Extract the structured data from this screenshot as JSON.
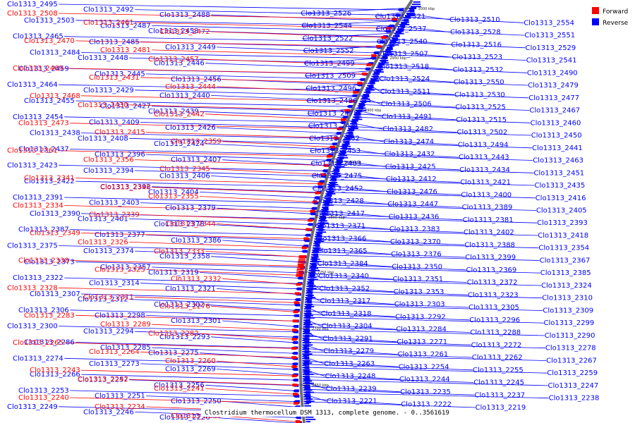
{
  "legend": {
    "forward_label": "Forward",
    "reverse_label": "Reverse",
    "forward_color": "#ff0000",
    "reverse_color": "#0000ff"
  },
  "caption": "Clostridium thermocellum DSM 1313, complete genome. - 0..3561619",
  "scale_labels": [
    "3000 kbp",
    "2950 kbp",
    "2900 kbp",
    "2850 kbp",
    "2800 kbp",
    "2750 kbp",
    "2700 kbp",
    "2650 kbp"
  ],
  "left_forward": [
    "Clo1313_2508",
    "Clo1313_2461",
    "Clo1313_2472",
    "Clo1313_2470",
    "Clo1313_2481",
    "Clo1313_2457",
    "Clo1313_2469",
    "Clo1313_2431",
    "Clo1313_2444",
    "Clo1313_2468",
    "Clo1313_2430",
    "Clo1313_2442",
    "Clo1313_2473",
    "Clo1313_2415",
    "Clo1313_2359",
    "Clo1313_2361",
    "Clo1313_2356",
    "Clo1313_2345",
    "Clo1313_2341",
    "Clo1313_2346",
    "Clo1313_2355",
    "Clo1313_2334",
    "Clo1313_2339",
    "Clo1313_2344",
    "Clo1313_2349",
    "Clo1313_2326",
    "Clo1313_2333",
    "Clo1313_2338",
    "Clo1313_2325",
    "Clo1313_2332",
    "Clo1313_2328",
    "Clo1313_2311",
    "Clo1313_2276",
    "Clo1313_2283",
    "Clo1313_2289",
    "Clo1313_2282",
    "Clo1313_2265",
    "Clo1313_2264",
    "Clo1313_2260",
    "Clo1313_2243",
    "Clo1313_2242",
    "Clo1313_2241",
    "Clo1313_2240",
    "Clo1313_2234",
    "Clo1313_2231"
  ],
  "left_reverse": [
    "Clo1313_2495",
    "Clo1313_2492",
    "Clo1313_2488",
    "Clo1313_2503",
    "Clo1313_2487",
    "Clo1313_2458",
    "Clo1313_2465",
    "Clo1313_2485",
    "Clo1313_2449",
    "Clo1313_2484",
    "Clo1313_2448",
    "Clo1313_2446",
    "Clo1313_2459",
    "Clo1313_2445",
    "Clo1313_2456",
    "Clo1313_2464",
    "Clo1313_2429",
    "Clo1313_2440",
    "Clo1313_2455",
    "Clo1313_2427",
    "Clo1313_2439",
    "Clo1313_2454",
    "Clo1313_2409",
    "Clo1313_2426",
    "Clo1313_2438",
    "Clo1313_2408",
    "Clo1313_2424",
    "Clo1313_2437",
    "Clo1313_2396",
    "Clo1313_2407",
    "Clo1313_2423",
    "Clo1313_2394",
    "Clo1313_2406",
    "Clo1313_2422",
    "Clo1313_2392",
    "Clo1313_2404",
    "Clo1313_2391",
    "Clo1313_2403",
    "Clo1313_2379",
    "Clo1313_2390",
    "Clo1313_2401",
    "Clo1313_2378",
    "Clo1313_2387",
    "Clo1313_2377",
    "Clo1313_2386",
    "Clo1313_2375",
    "Clo1313_2374",
    "Clo1313_2358",
    "Clo1313_2373",
    "Clo1313_2357",
    "Clo1313_2319",
    "Clo1313_2322",
    "Clo1313_2314",
    "Clo1313_2321",
    "Clo1313_2307",
    "Clo1313_2312",
    "Clo1313_2302",
    "Clo1313_2306",
    "Clo1313_2298",
    "Clo1313_2301",
    "Clo1313_2300",
    "Clo1313_2294",
    "Clo1313_2293",
    "Clo1313_2286",
    "Clo1313_2285",
    "Clo1313_2275",
    "Clo1313_2274",
    "Clo1313_2273",
    "Clo1313_2269",
    "Clo1313_2266",
    "Clo1313_2257",
    "Clo1313_2256",
    "Clo1313_2253",
    "Clo1313_2251",
    "Clo1313_2250",
    "Clo1313_2249",
    "Clo1313_2246",
    "Clo1313_2226"
  ],
  "right_reverse": [
    "Clo1313_2526",
    "Clo1313_2521",
    "Clo1313_2510",
    "Clo1313_2554",
    "Clo1313_2544",
    "Clo1313_2537",
    "Clo1313_2528",
    "Clo1313_2551",
    "Clo1313_2522",
    "Clo1313_2540",
    "Clo1313_2516",
    "Clo1313_2529",
    "Clo1313_2552",
    "Clo1313_2507",
    "Clo1313_2523",
    "Clo1313_2541",
    "Clo1313_2499",
    "Clo1313_2518",
    "Clo1313_2532",
    "Clo1313_2490",
    "Clo1313_2509",
    "Clo1313_2524",
    "Clo1313_2550",
    "Clo1313_2479",
    "Clo1313_2496",
    "Clo1313_2511",
    "Clo1313_2530",
    "Clo1313_2477",
    "Clo1313_2486",
    "Clo1313_2506",
    "Clo1313_2525",
    "Clo1313_2467",
    "Clo1313_2478",
    "Clo1313_2491",
    "Clo1313_2515",
    "Clo1313_2460",
    "Clo1313_2471",
    "Clo1313_2482",
    "Clo1313_2502",
    "Clo1313_2450",
    "Clo1313_2462",
    "Clo1313_2474",
    "Clo1313_2494",
    "Clo1313_2441",
    "Clo1313_2453",
    "Clo1313_2432",
    "Clo1313_2443",
    "Clo1313_2463",
    "Clo1313_2483",
    "Clo1313_2425",
    "Clo1313_2434",
    "Clo1313_2451",
    "Clo1313_2475",
    "Clo1313_2412",
    "Clo1313_2421",
    "Clo1313_2435",
    "Clo1313_2452",
    "Clo1313_2476",
    "Clo1313_2400",
    "Clo1313_2416",
    "Clo1313_2428",
    "Clo1313_2447",
    "Clo1313_2389",
    "Clo1313_2405",
    "Clo1313_2417",
    "Clo1313_2436",
    "Clo1313_2381",
    "Clo1313_2393",
    "Clo1313_2371",
    "Clo1313_2383",
    "Clo1313_2402",
    "Clo1313_2418",
    "Clo1313_2366",
    "Clo1313_2370",
    "Clo1313_2388",
    "Clo1313_2354",
    "Clo1313_2365",
    "Clo1313_2376",
    "Clo1313_2399",
    "Clo1313_2367",
    "Clo1313_2384",
    "Clo1313_2350",
    "Clo1313_2369",
    "Clo1313_2385",
    "Clo1313_2340",
    "Clo1313_2351",
    "Clo1313_2372",
    "Clo1313_2324",
    "Clo1313_2352",
    "Clo1313_2353",
    "Clo1313_2323",
    "Clo1313_2310",
    "Clo1313_2317",
    "Clo1313_2303",
    "Clo1313_2305",
    "Clo1313_2309",
    "Clo1313_2318",
    "Clo1313_2292",
    "Clo1313_2296",
    "Clo1313_2299",
    "Clo1313_2304",
    "Clo1313_2284",
    "Clo1313_2288",
    "Clo1313_2290",
    "Clo1313_2291",
    "Clo1313_2271",
    "Clo1313_2272",
    "Clo1313_2278",
    "Clo1313_2279",
    "Clo1313_2261",
    "Clo1313_2262",
    "Clo1313_2267",
    "Clo1313_2263",
    "Clo1313_2254",
    "Clo1313_2255",
    "Clo1313_2259",
    "Clo1313_2248",
    "Clo1313_2244",
    "Clo1313_2245",
    "Clo1313_2247",
    "Clo1313_2239",
    "Clo1313_2235",
    "Clo1313_2237",
    "Clo1313_2238",
    "Clo1313_2221",
    "Clo1313_2222",
    "Clo1313_2219"
  ]
}
